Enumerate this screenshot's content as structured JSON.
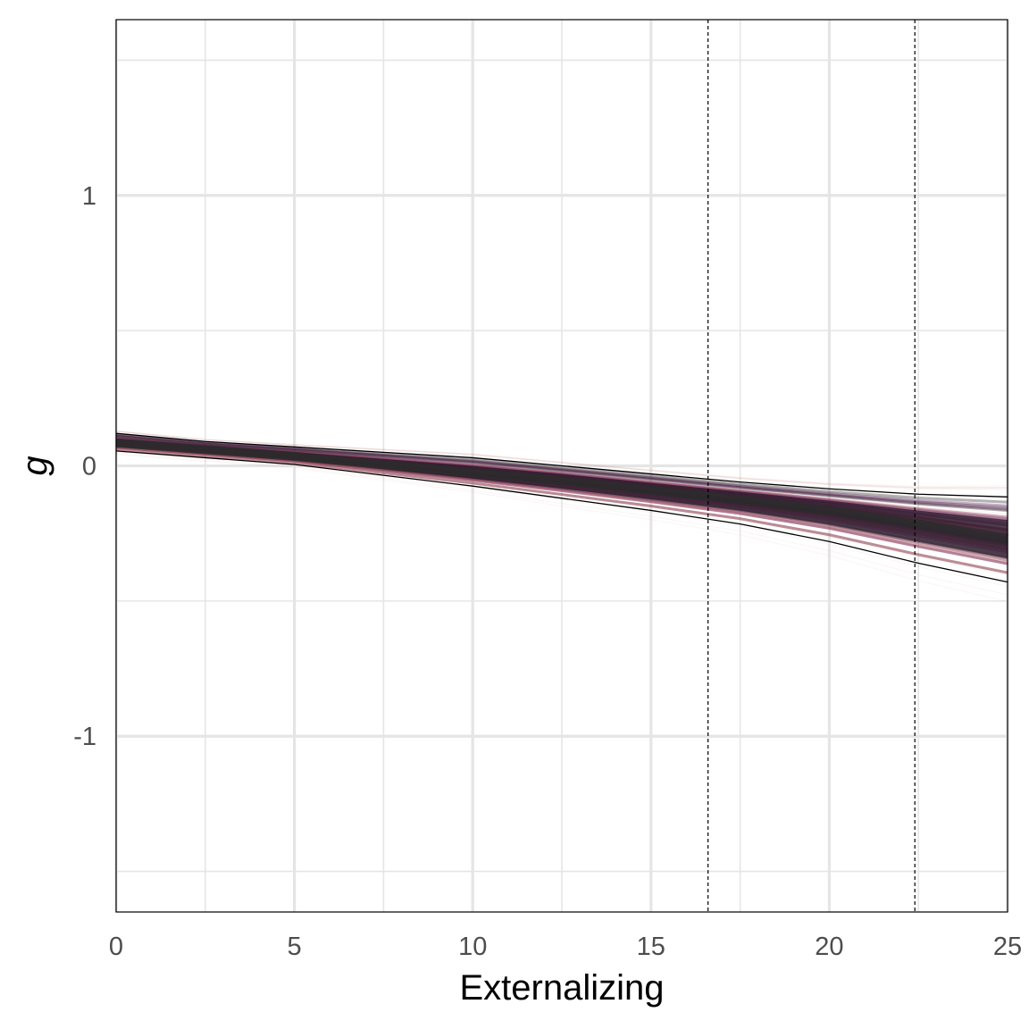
{
  "chart_data": {
    "type": "line",
    "xlabel": "Externalizing",
    "ylabel": "g",
    "xlim": [
      0,
      25
    ],
    "ylim": [
      -1.65,
      1.65
    ],
    "x_ticks": [
      0,
      5,
      10,
      15,
      20,
      25
    ],
    "x_tick_labels": [
      "0",
      "5",
      "10",
      "15",
      "20",
      "25"
    ],
    "y_ticks": [
      -1,
      0,
      1
    ],
    "y_tick_labels": [
      "-1",
      "0",
      "1"
    ],
    "x_minor_grid": [
      2.5,
      7.5,
      12.5,
      17.5,
      22.5
    ],
    "y_minor_grid": [
      -1.5,
      -0.5,
      0.5,
      1.5
    ],
    "grid": true,
    "vlines": [
      16.6,
      22.4
    ],
    "series": [
      {
        "role": "posterior-median",
        "x": [
          0,
          2.5,
          5,
          7.5,
          10,
          12.5,
          15,
          17.5,
          20,
          22.5,
          25
        ],
        "y": [
          0.085,
          0.06,
          0.035,
          0.005,
          -0.025,
          -0.055,
          -0.09,
          -0.125,
          -0.165,
          -0.215,
          -0.27
        ]
      },
      {
        "role": "upper-bound",
        "x": [
          0,
          2.5,
          5,
          7.5,
          10,
          12.5,
          15,
          17.5,
          20,
          22.5,
          25
        ],
        "y": [
          0.12,
          0.09,
          0.07,
          0.05,
          0.03,
          0.0,
          -0.03,
          -0.06,
          -0.085,
          -0.105,
          -0.115
        ]
      },
      {
        "role": "lower-bound",
        "x": [
          0,
          2.5,
          5,
          7.5,
          10,
          12.5,
          15,
          17.5,
          20,
          22.5,
          25
        ],
        "y": [
          0.055,
          0.03,
          0.005,
          -0.035,
          -0.075,
          -0.12,
          -0.165,
          -0.215,
          -0.28,
          -0.36,
          -0.43
        ]
      }
    ],
    "posterior_draws": {
      "count": 60,
      "colors": [
        "#3b0f3a",
        "#5a1a55",
        "#7a2a6e",
        "#8a3a4a",
        "#b06060",
        "#2b2b2b"
      ]
    },
    "colors": {
      "band": "#2b1a2b",
      "bound_line": "#000000",
      "grid": "#e5e5e5",
      "vline": "#000000",
      "frame": "#000000"
    }
  }
}
